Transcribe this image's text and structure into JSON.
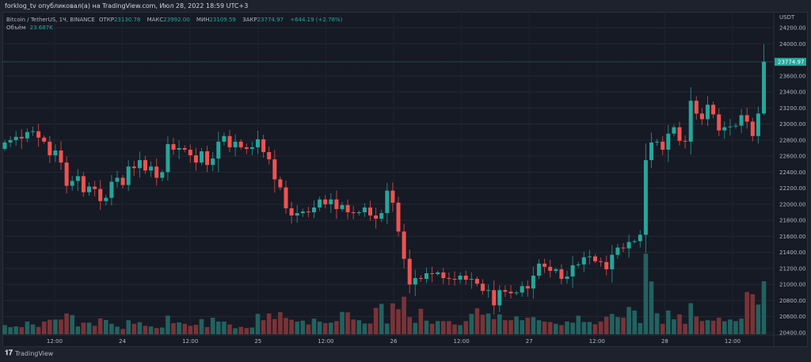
{
  "header": {
    "publisher_line": "forklog_tv опубликовал(а) на TradingView.com, Июл 28, 2022 18:59 UTC+3"
  },
  "legend": {
    "symbol": "Bitcoin / TetherUS, 1Ч, BINANCE",
    "open_label": "ОТКР",
    "open": "23130.78",
    "high_label": "МАКС",
    "high": "23992.00",
    "low_label": "МИН",
    "low": "23109.59",
    "close_label": "ЗАКР",
    "close": "23774.97",
    "change": "+644.19 (+2.78%)",
    "volume_label": "Объём",
    "volume": "23.687K"
  },
  "price_axis": {
    "currency": "USDT",
    "ticks": [
      "24200.00",
      "24000.00",
      "23600.00",
      "23400.00",
      "23200.00",
      "23000.00",
      "22800.00",
      "22600.00",
      "22400.00",
      "22200.00",
      "22000.00",
      "21800.00",
      "21600.00",
      "21400.00",
      "21200.00",
      "21000.00",
      "20800.00",
      "20600.00",
      "20400.00"
    ],
    "last_price_label": "23774.97"
  },
  "time_axis": {
    "ticks": [
      "12:00",
      "24",
      "12:00",
      "25",
      "12:00",
      "26",
      "12:00",
      "27",
      "12:00",
      "28",
      "12:00"
    ]
  },
  "footer": {
    "brand": "TradingView",
    "logo_mark": "17"
  },
  "colors": {
    "up": "#26a69a",
    "down": "#ef5350",
    "up_volume": "#22625f",
    "down_volume": "#7a3337",
    "background": "#161a25"
  },
  "chart_data": {
    "type": "candlestick",
    "interval": "1h",
    "first_open": 22690,
    "last_candle": {
      "open": 23130.78,
      "high": 23992.0,
      "low": 23109.59,
      "close": 23774.97
    },
    "closes": [
      22770,
      22800,
      22840,
      22820,
      22900,
      22910,
      22830,
      22780,
      22610,
      22670,
      22520,
      22230,
      22290,
      22350,
      22150,
      22220,
      22190,
      22040,
      22080,
      22280,
      22330,
      22240,
      22470,
      22450,
      22550,
      22420,
      22470,
      22330,
      22400,
      22750,
      22680,
      22700,
      22680,
      22610,
      22520,
      22660,
      22490,
      22570,
      22780,
      22850,
      22710,
      22780,
      22710,
      22690,
      22710,
      22810,
      22650,
      22560,
      22310,
      22210,
      21950,
      21860,
      21890,
      21910,
      21900,
      21960,
      22060,
      22000,
      22060,
      21940,
      21990,
      21900,
      21890,
      21900,
      21960,
      21860,
      21820,
      21890,
      22170,
      22020,
      21660,
      21320,
      21000,
      21080,
      21070,
      21140,
      21130,
      21150,
      21080,
      21070,
      21060,
      21110,
      21060,
      21070,
      21010,
      20920,
      20930,
      20740,
      20930,
      20910,
      20890,
      20900,
      20980,
      20950,
      21110,
      21260,
      21220,
      21170,
      21190,
      21070,
      21100,
      21240,
      21250,
      21340,
      21350,
      21290,
      21280,
      21190,
      21370,
      21460,
      21450,
      21530,
      21540,
      21620,
      22550,
      22770,
      22780,
      22680,
      22880,
      22960,
      22790,
      22780,
      23290,
      23130,
      23060,
      23240,
      23120,
      22920,
      22960,
      22970,
      22980,
      23110,
      23030,
      22850,
      23130.78,
      23774.97
    ],
    "volume_k": [
      4.1,
      3.2,
      3.5,
      3.2,
      5.7,
      4.4,
      3.3,
      5.7,
      6.5,
      6.6,
      6.6,
      9.3,
      8.6,
      3.5,
      5.2,
      5.2,
      3.8,
      7.1,
      6.4,
      4.7,
      3.4,
      2.4,
      6.3,
      4.7,
      5.4,
      3.8,
      3.5,
      2.8,
      3.0,
      8.3,
      5.0,
      5.3,
      4.7,
      3.8,
      4.2,
      6.8,
      3.2,
      7.4,
      5.7,
      5.7,
      4.4,
      2.7,
      3.3,
      2.8,
      3.0,
      9.1,
      6.3,
      9.3,
      6.8,
      9.9,
      7.3,
      6.5,
      5.7,
      6.1,
      4.4,
      7.0,
      5.7,
      5.0,
      5.2,
      5.9,
      10.0,
      9.8,
      6.6,
      6.3,
      4.8,
      4.8,
      11.8,
      13.6,
      4.8,
      13.8,
      11.2,
      16.8,
      7.7,
      5.1,
      11.4,
      6.1,
      4.7,
      5.9,
      5.9,
      5.9,
      4.4,
      4.1,
      5.9,
      9.1,
      11.6,
      8.7,
      9.3,
      6.8,
      8.9,
      6.3,
      6.3,
      8.0,
      6.3,
      7.4,
      7.7,
      6.3,
      5.7,
      5.5,
      4.7,
      4.1,
      5.7,
      5.2,
      8.3,
      5.5,
      5.5,
      4.5,
      5.7,
      7.9,
      9.1,
      7.7,
      7.4,
      12.2,
      10.6,
      5.0,
      36.0,
      23.6,
      9.4,
      4.7,
      10.6,
      6.7,
      8.9,
      4.7,
      13.9,
      8.0,
      5.9,
      6.3,
      6.1,
      7.4,
      5.8,
      6.6,
      5.9,
      7.0,
      18.9,
      17.9,
      13.3,
      23.687
    ],
    "y_range": [
      20400,
      24200
    ],
    "grid": true
  }
}
